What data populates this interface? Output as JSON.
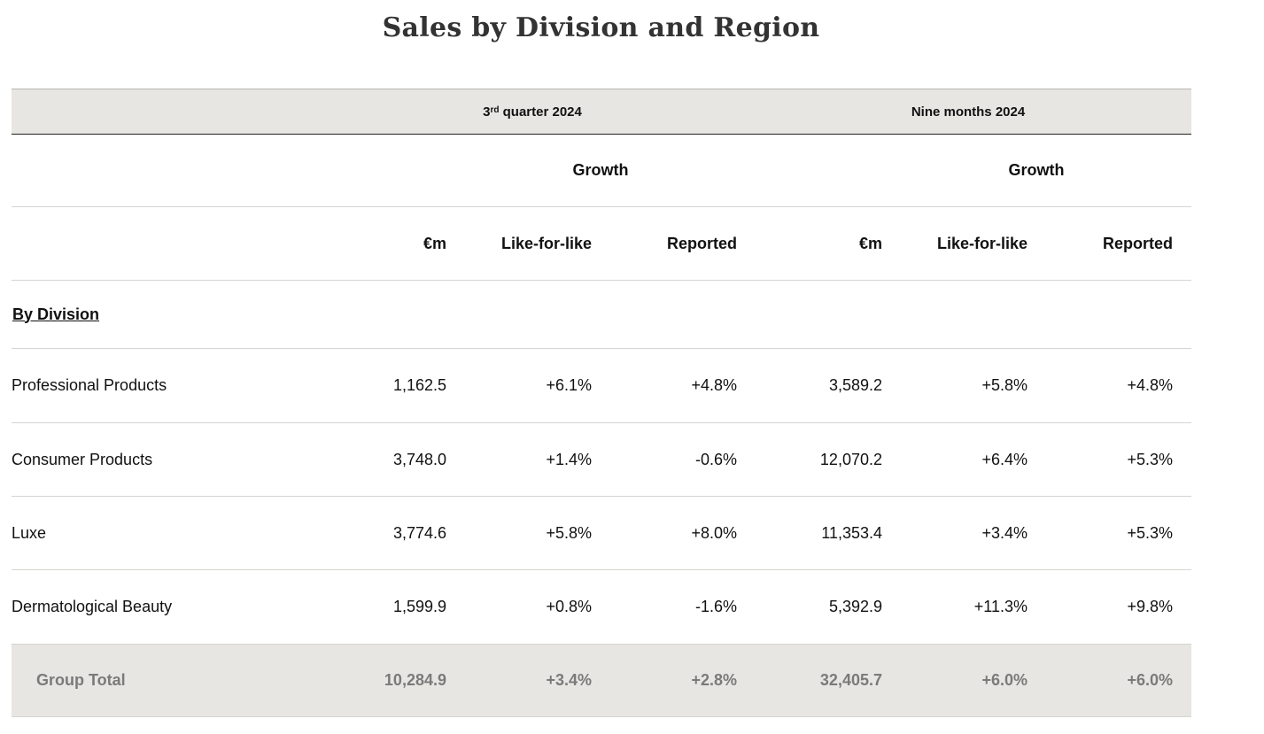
{
  "title": "Sales by Division and Region",
  "periods": {
    "q3_prefix": "3",
    "q3_sup": "rd",
    "q3_suffix": " quarter 2024",
    "nine_months": "Nine months 2024"
  },
  "growth_label": "Growth",
  "columns": {
    "amount": "€m",
    "lfl": "Like-for-like",
    "reported": "Reported"
  },
  "section_title": "By Division",
  "rows": [
    {
      "name": "Professional Products",
      "q3_amount": "1,162.5",
      "q3_lfl": "+6.1%",
      "q3_reported": "+4.8%",
      "nm_amount": "3,589.2",
      "nm_lfl": "+5.8%",
      "nm_reported": "+4.8%"
    },
    {
      "name": "Consumer Products",
      "q3_amount": "3,748.0",
      "q3_lfl": "+1.4%",
      "q3_reported": "-0.6%",
      "nm_amount": "12,070.2",
      "nm_lfl": "+6.4%",
      "nm_reported": "+5.3%"
    },
    {
      "name": "Luxe",
      "q3_amount": "3,774.6",
      "q3_lfl": "+5.8%",
      "q3_reported": "+8.0%",
      "nm_amount": "11,353.4",
      "nm_lfl": "+3.4%",
      "nm_reported": "+5.3%"
    },
    {
      "name": "Dermatological Beauty",
      "q3_amount": "1,599.9",
      "q3_lfl": "+0.8%",
      "q3_reported": "-1.6%",
      "nm_amount": "5,392.9",
      "nm_lfl": "+11.3%",
      "nm_reported": "+9.8%"
    }
  ],
  "total": {
    "name": "Group Total",
    "q3_amount": "10,284.9",
    "q3_lfl": "+3.4%",
    "q3_reported": "+2.8%",
    "nm_amount": "32,405.7",
    "nm_lfl": "+6.0%",
    "nm_reported": "+6.0%"
  }
}
